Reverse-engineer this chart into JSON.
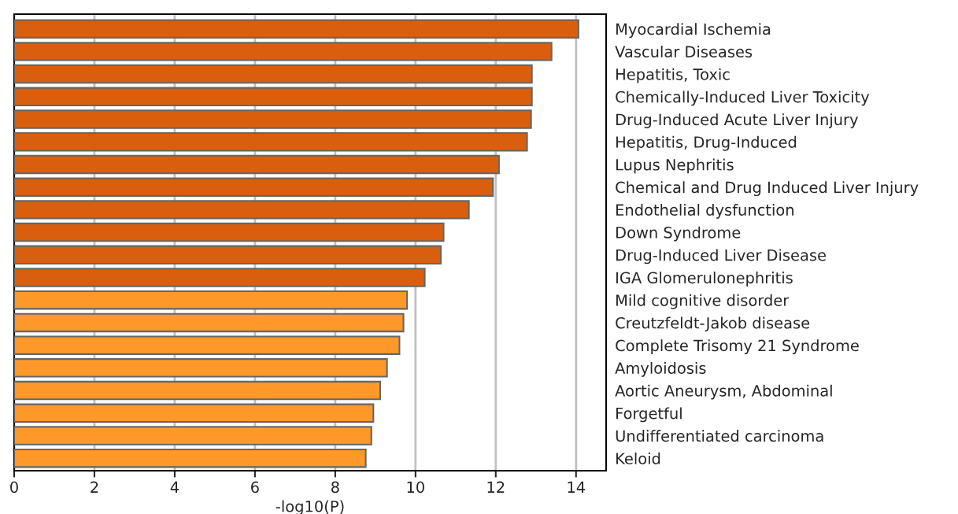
{
  "chart_data": {
    "type": "bar",
    "orientation": "horizontal",
    "xlabel": "-log10(P)",
    "categories": [
      "Myocardial Ischemia",
      "Vascular Diseases",
      "Hepatitis, Toxic",
      "Chemically-Induced Liver Toxicity",
      "Drug-Induced Acute Liver Injury",
      "Hepatitis, Drug-Induced",
      "Lupus Nephritis",
      "Chemical and Drug Induced Liver Injury",
      "Endothelial dysfunction",
      "Down Syndrome",
      "Drug-Induced Liver Disease",
      "IGA Glomerulonephritis",
      "Mild cognitive disorder",
      "Creutzfeldt-Jakob disease",
      "Complete Trisomy 21 Syndrome",
      "Amyloidosis",
      "Aortic Aneurysm, Abdominal",
      "Forgetful",
      "Undifferentiated carcinoma",
      "Keloid"
    ],
    "values": [
      14.06,
      13.39,
      12.9,
      12.9,
      12.88,
      12.78,
      12.08,
      11.93,
      11.33,
      10.7,
      10.63,
      10.23,
      9.79,
      9.7,
      9.6,
      9.29,
      9.12,
      8.95,
      8.9,
      8.76
    ],
    "colors": [
      "#d95f0e",
      "#d95f0e",
      "#d95f0e",
      "#d95f0e",
      "#d95f0e",
      "#d95f0e",
      "#d95f0e",
      "#d95f0e",
      "#d95f0e",
      "#d95f0e",
      "#d95f0e",
      "#d95f0e",
      "#fe9929",
      "#fe9929",
      "#fe9929",
      "#fe9929",
      "#fe9929",
      "#fe9929",
      "#fe9929",
      "#fe9929"
    ],
    "xlim": [
      0,
      14.75
    ],
    "xticks": [
      0,
      2,
      4,
      6,
      8,
      10,
      12,
      14
    ],
    "grid": "x"
  }
}
